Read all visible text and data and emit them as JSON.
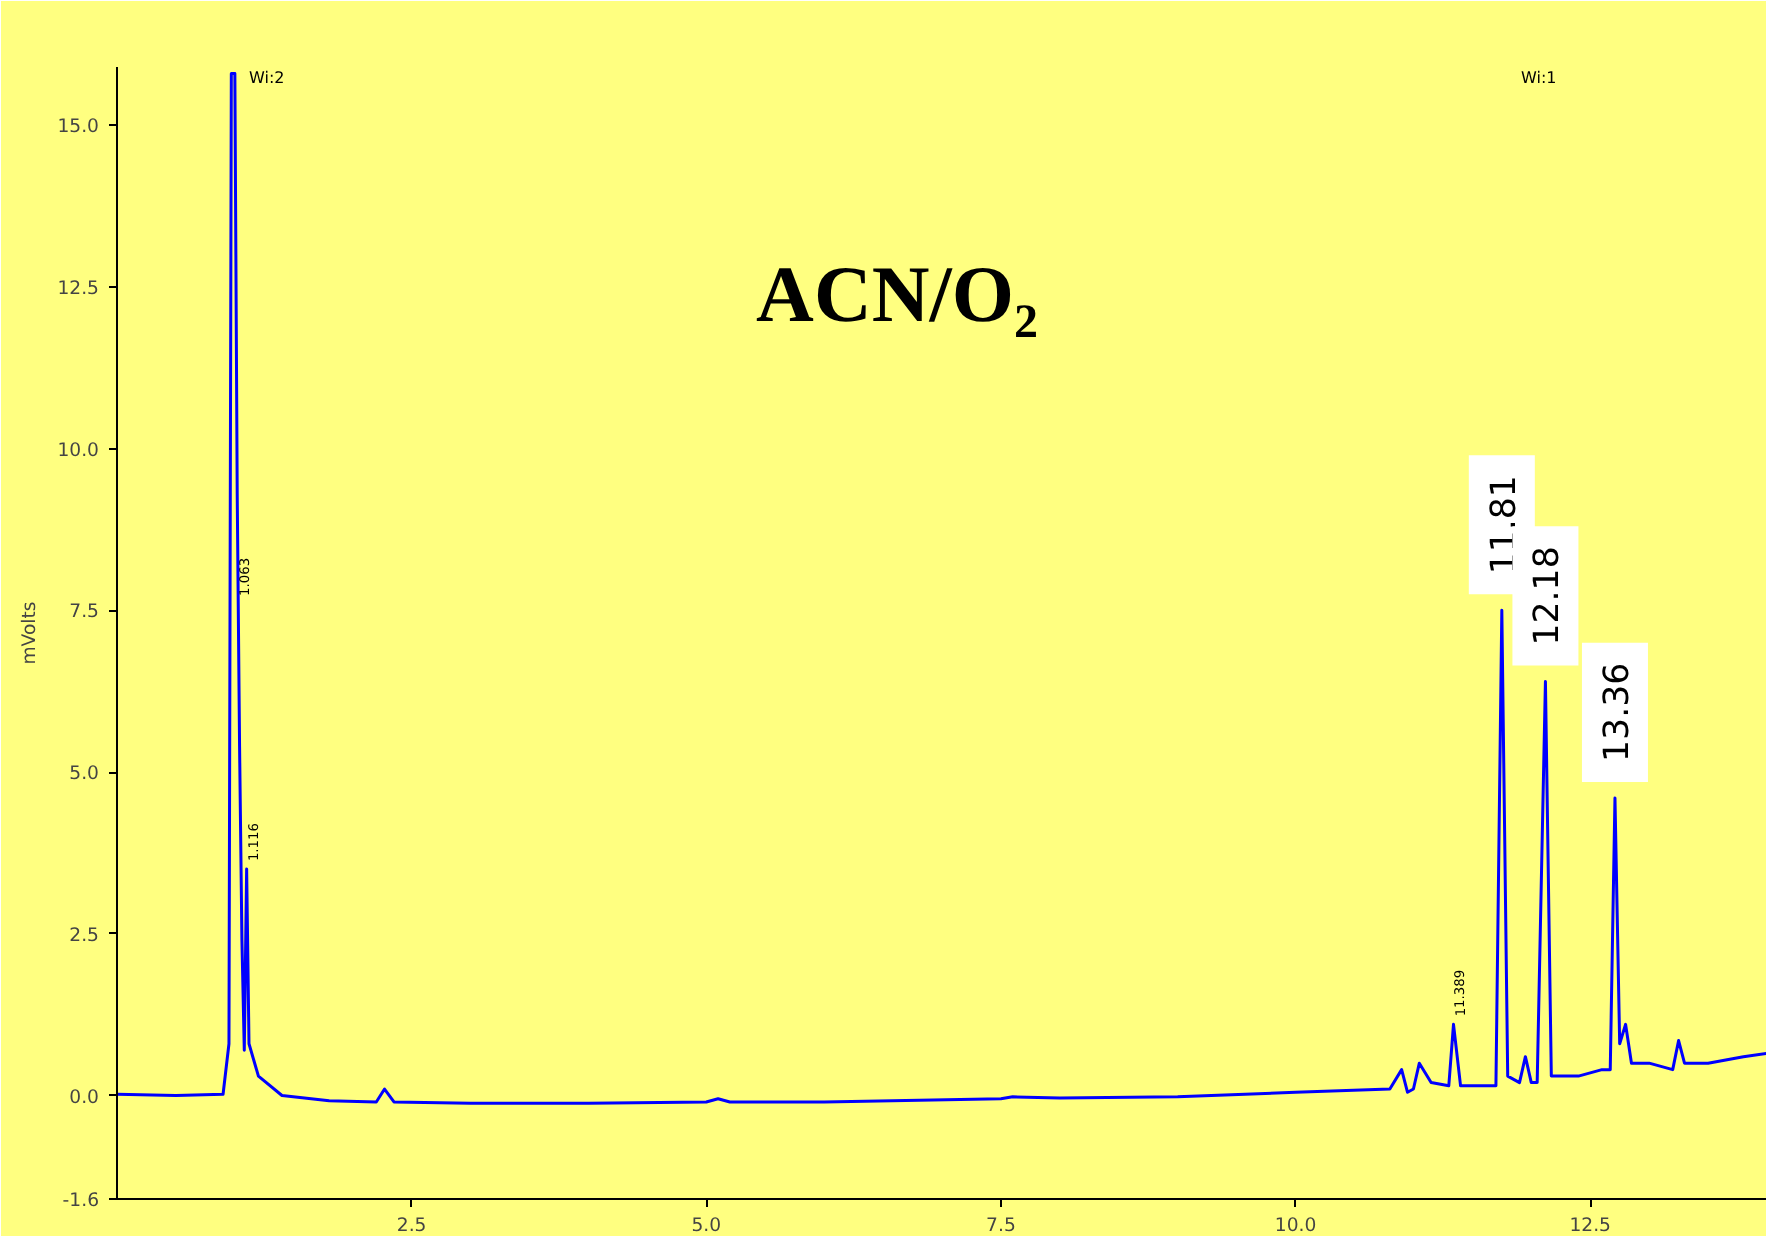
{
  "chart_data": {
    "type": "line",
    "title": "ACN/O₂",
    "ylabel": "mVolts",
    "xlim": [
      0,
      14
    ],
    "ylim": [
      -1.6,
      15.9
    ],
    "xticks": [
      {
        "value": 2.5,
        "label": "2.5"
      },
      {
        "value": 5,
        "label": "5.0"
      },
      {
        "value": 7.5,
        "label": "7.5"
      },
      {
        "value": 10,
        "label": "10.0"
      },
      {
        "value": 12.5,
        "label": "12.5"
      }
    ],
    "yticks": [
      {
        "value": -1.6,
        "label": "-1.6"
      },
      {
        "value": 0,
        "label": "0.0"
      },
      {
        "value": 2.5,
        "label": "2.5"
      },
      {
        "value": 5,
        "label": "5.0"
      },
      {
        "value": 7.5,
        "label": "7.5"
      },
      {
        "value": 10,
        "label": "10.0"
      },
      {
        "value": 12.5,
        "label": "12.5"
      },
      {
        "value": 15,
        "label": "15.0"
      }
    ],
    "grid": false,
    "marker": "none",
    "line_style": "solid",
    "series": [
      {
        "color": "#0000ff",
        "x": [
          0,
          0.5,
          0.9,
          0.95,
          0.97,
          1.0,
          1.02,
          1.04,
          1.06,
          1.08,
          1.1,
          1.12,
          1.2,
          1.4,
          1.8,
          2.2,
          2.27,
          2.35,
          3,
          4,
          5,
          5.1,
          5.2,
          6,
          7.5,
          7.6,
          8,
          9,
          10,
          10.8,
          10.9,
          10.95,
          11.0,
          11.05,
          11.15,
          11.3,
          11.34,
          11.4,
          11.7,
          11.75,
          11.8,
          11.9,
          11.95,
          12.0,
          12.05,
          12.12,
          12.17,
          12.4,
          12.6,
          12.67,
          12.71,
          12.75,
          12.8,
          12.85,
          13.0,
          13.2,
          13.25,
          13.3,
          13.5,
          13.8,
          14
        ],
        "values": [
          0.02,
          0.0,
          0.02,
          0.8,
          15.8,
          15.8,
          9.3,
          5.4,
          2.4,
          0.7,
          3.5,
          0.8,
          0.3,
          0.0,
          -0.08,
          -0.1,
          0.1,
          -0.1,
          -0.12,
          -0.12,
          -0.1,
          -0.05,
          -0.1,
          -0.1,
          -0.05,
          -0.02,
          -0.04,
          -0.02,
          0.05,
          0.1,
          0.4,
          0.05,
          0.1,
          0.5,
          0.2,
          0.15,
          1.1,
          0.15,
          0.15,
          7.5,
          0.3,
          0.2,
          0.6,
          0.2,
          0.2,
          6.4,
          0.3,
          0.3,
          0.4,
          0.4,
          4.6,
          0.8,
          1.1,
          0.5,
          0.5,
          0.4,
          0.85,
          0.5,
          0.5,
          0.6,
          0.65
        ]
      }
    ],
    "annotations": [
      {
        "text": "11.81",
        "x": 11.75,
        "y": 7.5
      },
      {
        "text": "12.18",
        "x": 12.12,
        "y": 6.4
      },
      {
        "text": "13.36",
        "x": 12.71,
        "y": 4.6
      },
      {
        "text": "11.389",
        "x": 11.34,
        "y": 1.1
      },
      {
        "text": "1.116",
        "x": 1.1,
        "y": 3.5
      },
      {
        "text": "1.063",
        "x": 1.03,
        "y": 7.6
      },
      "Wi:2",
      "Wi:1"
    ]
  }
}
